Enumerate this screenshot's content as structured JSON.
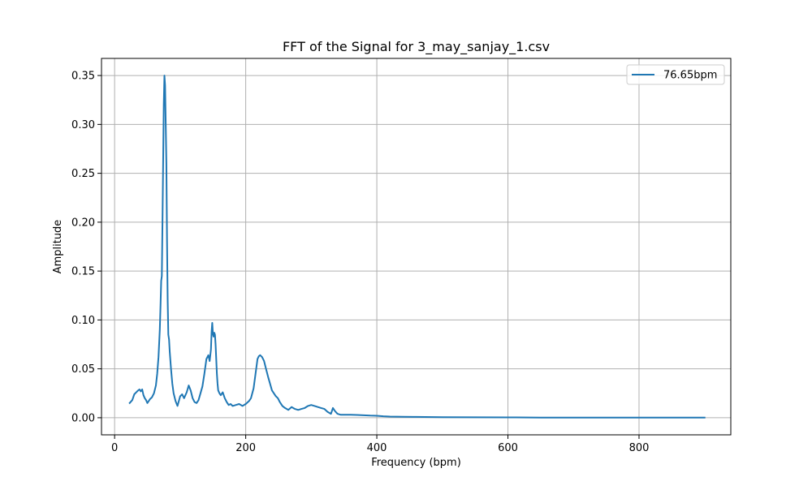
{
  "chart_data": {
    "type": "line",
    "title": "FFT of the Signal for 3_may_sanjay_1.csv",
    "xlabel": "Frequency (bpm)",
    "ylabel": "Amplitude",
    "xlim": [
      -20,
      940
    ],
    "ylim": [
      -0.0175,
      0.3675
    ],
    "xticks": [
      0,
      200,
      400,
      600,
      800
    ],
    "xtick_labels": [
      "0",
      "200",
      "400",
      "600",
      "800"
    ],
    "yticks": [
      0.0,
      0.05,
      0.1,
      0.15,
      0.2,
      0.25,
      0.3,
      0.35
    ],
    "ytick_labels": [
      "0.00",
      "0.05",
      "0.10",
      "0.15",
      "0.20",
      "0.25",
      "0.30",
      "0.35"
    ],
    "grid": true,
    "legend_position": "top-right",
    "series": [
      {
        "name": "76.65bpm",
        "color": "#1f77b4",
        "x": [
          23,
          27,
          30,
          33,
          36,
          38,
          40,
          42,
          44,
          46,
          48,
          50,
          52,
          54,
          57,
          60,
          63,
          65,
          67,
          69,
          70,
          71,
          72,
          73,
          74,
          75,
          76,
          77,
          78,
          79,
          80,
          81,
          82,
          83,
          84,
          86,
          88,
          90,
          93,
          96,
          100,
          103,
          106,
          110,
          113,
          116,
          119,
          122,
          125,
          128,
          131,
          134,
          137,
          140,
          143,
          145,
          147,
          148,
          149,
          150,
          151,
          152,
          153,
          154,
          155,
          156,
          157,
          158,
          160,
          162,
          165,
          168,
          171,
          174,
          177,
          180,
          185,
          190,
          195,
          200,
          205,
          208,
          212,
          215,
          218,
          220,
          222,
          225,
          228,
          231,
          234,
          237,
          240,
          243,
          246,
          249,
          252,
          256,
          260,
          265,
          270,
          275,
          280,
          285,
          290,
          295,
          300,
          305,
          310,
          315,
          320,
          325,
          330,
          333,
          336,
          340,
          345,
          350,
          360,
          370,
          380,
          390,
          400,
          410,
          420,
          440,
          460,
          500,
          550,
          600,
          650,
          700,
          750,
          800,
          850,
          900
        ],
        "values": [
          0.015,
          0.018,
          0.024,
          0.026,
          0.028,
          0.029,
          0.027,
          0.029,
          0.023,
          0.02,
          0.018,
          0.015,
          0.017,
          0.019,
          0.021,
          0.025,
          0.033,
          0.045,
          0.062,
          0.09,
          0.115,
          0.14,
          0.145,
          0.2,
          0.26,
          0.32,
          0.35,
          0.34,
          0.3,
          0.26,
          0.18,
          0.12,
          0.085,
          0.08,
          0.068,
          0.05,
          0.035,
          0.025,
          0.017,
          0.012,
          0.022,
          0.024,
          0.02,
          0.026,
          0.033,
          0.028,
          0.02,
          0.016,
          0.015,
          0.018,
          0.025,
          0.032,
          0.045,
          0.06,
          0.064,
          0.058,
          0.07,
          0.088,
          0.097,
          0.086,
          0.083,
          0.087,
          0.085,
          0.075,
          0.06,
          0.045,
          0.035,
          0.028,
          0.025,
          0.023,
          0.026,
          0.02,
          0.016,
          0.013,
          0.014,
          0.012,
          0.013,
          0.014,
          0.012,
          0.014,
          0.017,
          0.02,
          0.03,
          0.045,
          0.06,
          0.063,
          0.064,
          0.062,
          0.058,
          0.05,
          0.042,
          0.035,
          0.028,
          0.025,
          0.022,
          0.02,
          0.016,
          0.012,
          0.01,
          0.008,
          0.011,
          0.009,
          0.008,
          0.009,
          0.01,
          0.012,
          0.013,
          0.012,
          0.011,
          0.01,
          0.009,
          0.006,
          0.004,
          0.01,
          0.007,
          0.004,
          0.003,
          0.003,
          0.003,
          0.0028,
          0.0025,
          0.0022,
          0.002,
          0.0015,
          0.0012,
          0.001,
          0.0008,
          0.0006,
          0.0004,
          0.0003,
          0.0002,
          0.0002,
          0.0001,
          0.0001,
          0.0001,
          0.0001
        ]
      }
    ]
  }
}
